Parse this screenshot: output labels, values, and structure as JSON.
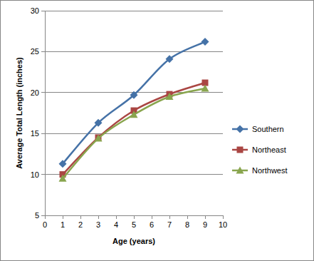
{
  "chart_data": {
    "type": "line",
    "x_label": "Age (years)",
    "y_label": "Average Total Length (inches)",
    "x": [
      1,
      3,
      5,
      7,
      9
    ],
    "series": [
      {
        "name": "Southern",
        "color": "#4572a7",
        "marker": "diamond",
        "line_style": "solid",
        "values": [
          11.3,
          16.3,
          19.7,
          24.1,
          26.2
        ]
      },
      {
        "name": "Northeast",
        "color": "#aa4643",
        "marker": "square",
        "line_style": "solid",
        "values": [
          10.0,
          14.5,
          17.8,
          19.8,
          21.2
        ]
      },
      {
        "name": "Northwest",
        "color": "#89a54e",
        "marker": "triangle",
        "line_style": "solid",
        "values": [
          9.5,
          14.4,
          17.3,
          19.5,
          20.5
        ]
      }
    ],
    "xlim": [
      0,
      10
    ],
    "xticks": [
      0,
      1,
      2,
      3,
      4,
      5,
      6,
      7,
      8,
      9,
      10
    ],
    "ylim": [
      5,
      30
    ],
    "yticks": [
      5,
      10,
      15,
      20,
      25,
      30
    ],
    "grid": true,
    "legend": "right"
  }
}
